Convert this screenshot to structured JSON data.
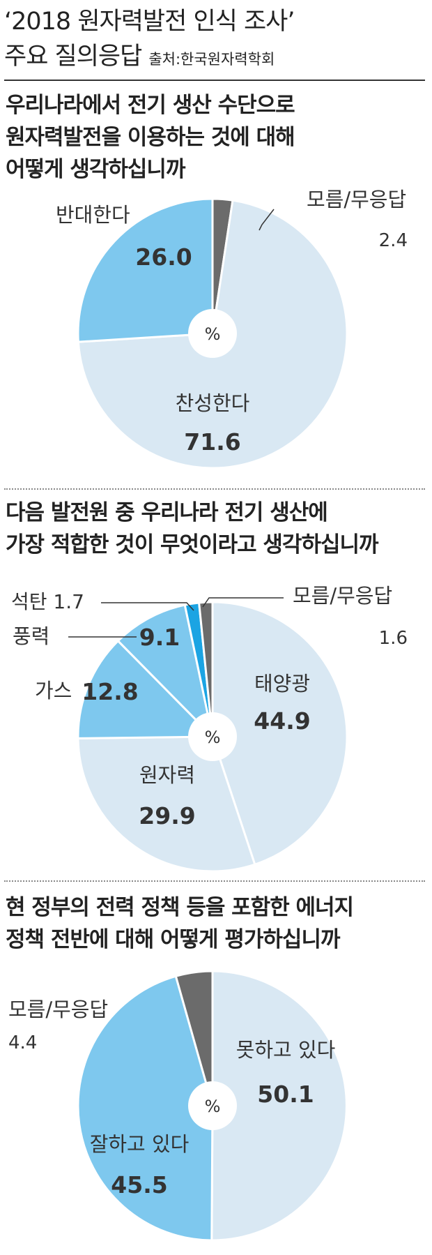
{
  "header": {
    "title_line1": "‘2018 원자력발전 인식 조사’",
    "title_line2": "주요 질의응답",
    "source": "출처:한국원자력학회"
  },
  "center_unit": "%",
  "colors": {
    "light": "#d9e8f3",
    "medium": "#7ec8ee",
    "bright": "#1ba4e3",
    "dark": "#6b6b6b"
  },
  "chart_data": [
    {
      "type": "pie",
      "question_lines": [
        "우리나라에서 전기 생산 수단으로",
        "원자력발전을 이용하는 것에 대해",
        "어떻게 생각하십니까"
      ],
      "slices": [
        {
          "label": "모름/무응답",
          "value": 2.4,
          "color": "dark"
        },
        {
          "label": "찬성한다",
          "value": 71.6,
          "color": "light"
        },
        {
          "label": "반대한다",
          "value": 26.0,
          "color": "medium"
        }
      ]
    },
    {
      "type": "pie",
      "question_lines": [
        "다음 발전원 중 우리나라 전기 생산에",
        "가장 적합한 것이 무엇이라고 생각하십니까"
      ],
      "slices": [
        {
          "label": "태양광",
          "value": 44.9,
          "color": "light"
        },
        {
          "label": "원자력",
          "value": 29.9,
          "color": "light"
        },
        {
          "label": "가스",
          "value": 12.8,
          "color": "medium"
        },
        {
          "label": "풍력",
          "value": 9.1,
          "color": "medium"
        },
        {
          "label": "석탄",
          "value": 1.7,
          "color": "bright"
        },
        {
          "label": "모름/무응답",
          "value": 1.6,
          "color": "dark"
        }
      ]
    },
    {
      "type": "pie",
      "question_lines": [
        "현 정부의 전력 정책 등을 포함한 에너지",
        "정책 전반에 대해 어떻게 평가하십니까"
      ],
      "slices": [
        {
          "label": "못하고 있다",
          "value": 50.1,
          "color": "light"
        },
        {
          "label": "잘하고 있다",
          "value": 45.5,
          "color": "medium"
        },
        {
          "label": "모름/무응답",
          "value": 4.4,
          "color": "dark"
        }
      ]
    }
  ]
}
